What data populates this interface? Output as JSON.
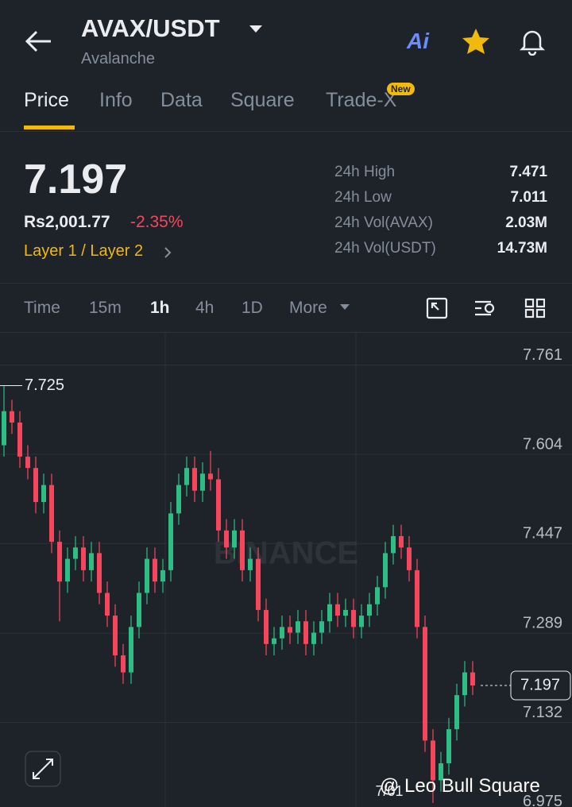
{
  "header": {
    "title": "AVAX/USDT",
    "subtitle": "Avalanche",
    "ai_label": "Ai"
  },
  "tabs": [
    "Price",
    "Info",
    "Data",
    "Square",
    "Trade-X"
  ],
  "new_badge": "New",
  "summary": {
    "price": "7.197",
    "fiat_price": "Rs2,001.77",
    "change": "-2.35%",
    "tags": "Layer 1 / Layer 2"
  },
  "stats": [
    {
      "label": "24h High",
      "value": "7.471"
    },
    {
      "label": "24h Low",
      "value": "7.011"
    },
    {
      "label": "24h Vol(AVAX)",
      "value": "2.03M"
    },
    {
      "label": "24h Vol(USDT)",
      "value": "14.73M"
    }
  ],
  "intervals": [
    "Time",
    "15m",
    "1h",
    "4h",
    "1D",
    "More"
  ],
  "chart_data": {
    "type": "candlestick",
    "watermark": "BINANCE",
    "x_tick": "7/01",
    "ylim": [
      6.983,
      7.818
    ],
    "yticks": [
      7.761,
      7.604,
      7.447,
      7.289,
      7.132,
      6.975
    ],
    "up_color": "#2ebd85",
    "down_color": "#f6465d",
    "high_marker": 7.725,
    "last_price": 7.197,
    "open": [
      7.62,
      7.68,
      7.66,
      7.6,
      7.58,
      7.52,
      7.55,
      7.45,
      7.38,
      7.42,
      7.44,
      7.4,
      7.43,
      7.36,
      7.32,
      7.25,
      7.22,
      7.3,
      7.36,
      7.42,
      7.38,
      7.4,
      7.5,
      7.55,
      7.58,
      7.54,
      7.57,
      7.56,
      7.47,
      7.44,
      7.47,
      7.4,
      7.42,
      7.33,
      7.27,
      7.28,
      7.3,
      7.29,
      7.31,
      7.27,
      7.29,
      7.31,
      7.34,
      7.32,
      7.33,
      7.3,
      7.32,
      7.34,
      7.37,
      7.43,
      7.46,
      7.44,
      7.4,
      7.3,
      7.1,
      7.03,
      7.06,
      7.12,
      7.18,
      7.22
    ],
    "high": [
      7.725,
      7.7,
      7.68,
      7.62,
      7.6,
      7.57,
      7.57,
      7.47,
      7.44,
      7.46,
      7.46,
      7.45,
      7.45,
      7.38,
      7.34,
      7.27,
      7.32,
      7.38,
      7.44,
      7.44,
      7.42,
      7.52,
      7.57,
      7.6,
      7.6,
      7.59,
      7.61,
      7.58,
      7.49,
      7.49,
      7.49,
      7.44,
      7.44,
      7.35,
      7.3,
      7.32,
      7.32,
      7.33,
      7.33,
      7.31,
      7.33,
      7.36,
      7.36,
      7.35,
      7.35,
      7.34,
      7.36,
      7.39,
      7.45,
      7.48,
      7.48,
      7.46,
      7.42,
      7.32,
      7.12,
      7.08,
      7.14,
      7.2,
      7.24,
      7.24
    ],
    "low": [
      7.6,
      7.64,
      7.58,
      7.56,
      7.5,
      7.5,
      7.43,
      7.31,
      7.36,
      7.4,
      7.38,
      7.38,
      7.34,
      7.3,
      7.23,
      7.2,
      7.2,
      7.28,
      7.34,
      7.36,
      7.36,
      7.38,
      7.48,
      7.53,
      7.52,
      7.52,
      7.54,
      7.45,
      7.42,
      7.42,
      7.38,
      7.38,
      7.31,
      7.25,
      7.25,
      7.26,
      7.27,
      7.27,
      7.25,
      7.25,
      7.27,
      7.29,
      7.3,
      7.3,
      7.28,
      7.28,
      7.3,
      7.32,
      7.35,
      7.41,
      7.42,
      7.38,
      7.28,
      7.08,
      6.99,
      7.01,
      7.04,
      7.1,
      7.16,
      7.18
    ],
    "close": [
      7.68,
      7.66,
      7.6,
      7.58,
      7.52,
      7.55,
      7.45,
      7.38,
      7.42,
      7.44,
      7.4,
      7.43,
      7.36,
      7.32,
      7.25,
      7.22,
      7.3,
      7.36,
      7.42,
      7.38,
      7.4,
      7.5,
      7.55,
      7.58,
      7.54,
      7.57,
      7.56,
      7.47,
      7.44,
      7.47,
      7.4,
      7.42,
      7.33,
      7.27,
      7.28,
      7.3,
      7.29,
      7.31,
      7.27,
      7.29,
      7.31,
      7.34,
      7.32,
      7.33,
      7.3,
      7.32,
      7.34,
      7.37,
      7.43,
      7.46,
      7.44,
      7.4,
      7.3,
      7.1,
      7.03,
      7.06,
      7.12,
      7.18,
      7.22,
      7.197
    ]
  },
  "footer": "@ Leo Bull Square"
}
